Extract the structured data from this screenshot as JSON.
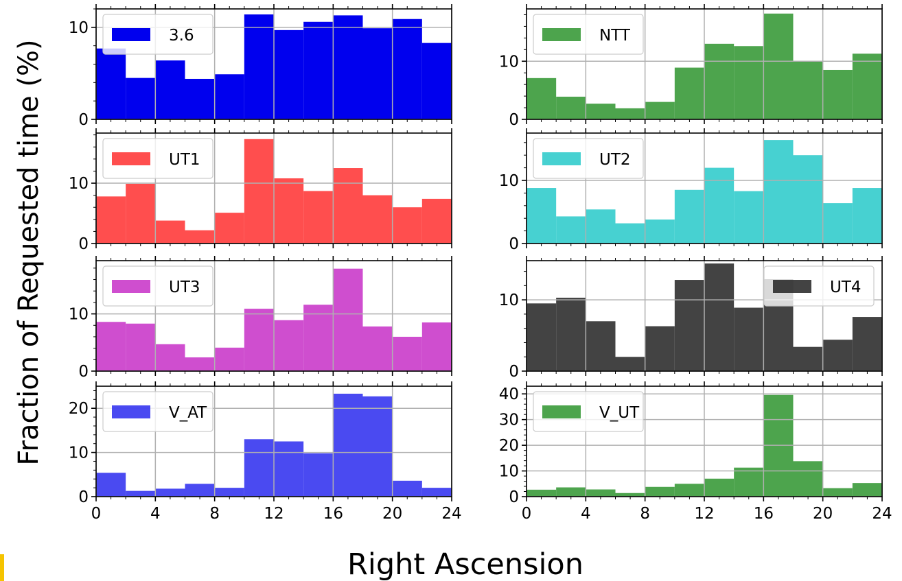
{
  "figure": {
    "ylabel": "Fraction of Requested time (%)",
    "xlabel": "Right Ascension"
  },
  "chart_data": [
    {
      "type": "bar",
      "series_name": "3.6",
      "color": "#0000ee",
      "alpha": 1.0,
      "bin_edges": [
        0,
        2,
        4,
        6,
        8,
        10,
        12,
        14,
        16,
        18,
        20,
        22,
        24
      ],
      "values": [
        7.7,
        4.5,
        6.4,
        4.4,
        4.9,
        11.4,
        9.7,
        10.6,
        11.3,
        9.9,
        10.9,
        8.3
      ],
      "ylim": [
        0,
        12
      ],
      "yticks": [
        0,
        10
      ],
      "xticks": [
        0,
        4,
        8,
        12,
        16,
        20,
        24
      ],
      "legend_loc": "upper left",
      "grid": true
    },
    {
      "type": "bar",
      "series_name": "NTT",
      "color": "#3a9a3a",
      "alpha": 0.9,
      "bin_edges": [
        0,
        2,
        4,
        6,
        8,
        10,
        12,
        14,
        16,
        18,
        20,
        22,
        24
      ],
      "values": [
        7.1,
        3.9,
        2.7,
        1.9,
        3.0,
        8.9,
        13.0,
        12.6,
        18.2,
        10.0,
        8.5,
        11.3
      ],
      "ylim": [
        0,
        19
      ],
      "yticks": [
        0,
        10
      ],
      "xticks": [
        0,
        4,
        8,
        12,
        16,
        20,
        24
      ],
      "legend_loc": "upper left",
      "grid": true
    },
    {
      "type": "bar",
      "series_name": "UT1",
      "color": "#ff3b3b",
      "alpha": 0.9,
      "bin_edges": [
        0,
        2,
        4,
        6,
        8,
        10,
        12,
        14,
        16,
        18,
        20,
        22,
        24
      ],
      "values": [
        7.8,
        9.9,
        3.8,
        2.2,
        5.1,
        17.3,
        10.8,
        8.7,
        12.5,
        8.0,
        6.0,
        7.4
      ],
      "ylim": [
        0,
        18.3
      ],
      "yticks": [
        0,
        10
      ],
      "xticks": [
        0,
        4,
        8,
        12,
        16,
        20,
        24
      ],
      "legend_loc": "upper left",
      "grid": true
    },
    {
      "type": "bar",
      "series_name": "UT2",
      "color": "#33cccc",
      "alpha": 0.9,
      "bin_edges": [
        0,
        2,
        4,
        6,
        8,
        10,
        12,
        14,
        16,
        18,
        20,
        22,
        24
      ],
      "values": [
        8.8,
        4.3,
        5.4,
        3.2,
        3.8,
        8.5,
        12.0,
        8.3,
        16.4,
        14.0,
        6.4,
        8.8
      ],
      "ylim": [
        0,
        17.5
      ],
      "yticks": [
        0,
        10
      ],
      "xticks": [
        0,
        4,
        8,
        12,
        16,
        20,
        24
      ],
      "legend_loc": "upper left",
      "grid": true
    },
    {
      "type": "bar",
      "series_name": "UT3",
      "color": "#cc44cc",
      "alpha": 0.95,
      "bin_edges": [
        0,
        2,
        4,
        6,
        8,
        10,
        12,
        14,
        16,
        18,
        20,
        22,
        24
      ],
      "values": [
        8.6,
        8.3,
        4.7,
        2.4,
        4.1,
        10.9,
        8.9,
        11.6,
        17.9,
        7.8,
        6.0,
        8.5
      ],
      "ylim": [
        0,
        19.3
      ],
      "yticks": [
        0,
        10
      ],
      "xticks": [
        0,
        4,
        8,
        12,
        16,
        20,
        24
      ],
      "legend_loc": "upper left",
      "grid": true
    },
    {
      "type": "bar",
      "series_name": "UT4",
      "color": "#222222",
      "alpha": 0.85,
      "bin_edges": [
        0,
        2,
        4,
        6,
        8,
        10,
        12,
        14,
        16,
        18,
        20,
        22,
        24
      ],
      "values": [
        9.5,
        10.3,
        7.0,
        2.0,
        6.3,
        12.8,
        15.1,
        8.9,
        12.9,
        3.4,
        4.4,
        7.6
      ],
      "ylim": [
        0,
        15.5
      ],
      "yticks": [
        0,
        10
      ],
      "xticks": [
        0,
        4,
        8,
        12,
        16,
        20,
        24
      ],
      "legend_loc": "upper right",
      "grid": true
    },
    {
      "type": "bar",
      "series_name": "V_AT",
      "color": "#2a2aee",
      "alpha": 0.85,
      "bin_edges": [
        0,
        2,
        4,
        6,
        8,
        10,
        12,
        14,
        16,
        18,
        20,
        22,
        24
      ],
      "values": [
        5.4,
        1.3,
        1.8,
        2.9,
        2.0,
        13.0,
        12.5,
        9.8,
        23.3,
        22.7,
        3.6,
        2.0
      ],
      "ylim": [
        0,
        25
      ],
      "yticks": [
        0,
        10,
        20
      ],
      "xticks": [
        0,
        4,
        8,
        12,
        16,
        20,
        24
      ],
      "legend_loc": "upper left",
      "grid": true
    },
    {
      "type": "bar",
      "series_name": "V_UT",
      "color": "#3a9a3a",
      "alpha": 0.9,
      "bin_edges": [
        0,
        2,
        4,
        6,
        8,
        10,
        12,
        14,
        16,
        18,
        20,
        22,
        24
      ],
      "values": [
        2.7,
        3.6,
        2.8,
        1.4,
        3.8,
        5.0,
        7.0,
        11.3,
        39.6,
        13.8,
        3.3,
        5.3
      ],
      "ylim": [
        0,
        43
      ],
      "yticks": [
        0,
        10,
        20,
        30,
        40
      ],
      "xticks": [
        0,
        4,
        8,
        12,
        16,
        20,
        24
      ],
      "legend_loc": "upper left",
      "grid": true
    }
  ]
}
